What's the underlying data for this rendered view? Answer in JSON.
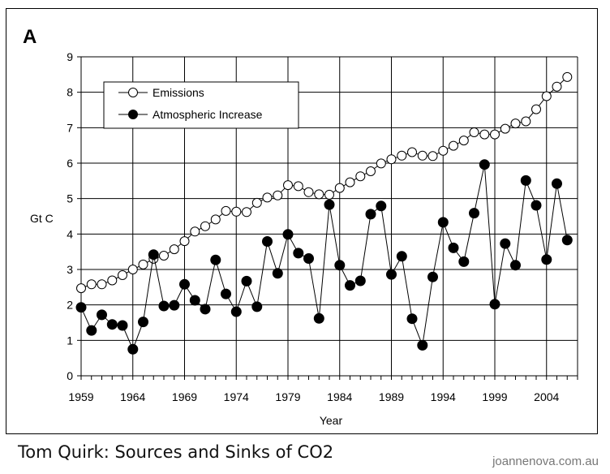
{
  "chart_data": {
    "type": "line",
    "panel_label": "A",
    "xlabel": "Year",
    "ylabel": "Gt C",
    "xlim": [
      1959,
      2007
    ],
    "ylim": [
      0,
      9
    ],
    "yticks": [
      0,
      1,
      2,
      3,
      4,
      5,
      6,
      7,
      8,
      9
    ],
    "xticks": [
      1959,
      1964,
      1969,
      1974,
      1979,
      1984,
      1989,
      1994,
      1999,
      2004
    ],
    "legend_position": "top-left",
    "grid": true,
    "x": [
      1959,
      1960,
      1961,
      1962,
      1963,
      1964,
      1965,
      1966,
      1967,
      1968,
      1969,
      1970,
      1971,
      1972,
      1973,
      1974,
      1975,
      1976,
      1977,
      1978,
      1979,
      1980,
      1981,
      1982,
      1983,
      1984,
      1985,
      1986,
      1987,
      1988,
      1989,
      1990,
      1991,
      1992,
      1993,
      1994,
      1995,
      1996,
      1997,
      1998,
      1999,
      2000,
      2001,
      2002,
      2003,
      2004,
      2005,
      2006
    ],
    "series": [
      {
        "name": "Emissions",
        "marker": "open-circle",
        "values": [
          2.47,
          2.58,
          2.58,
          2.69,
          2.84,
          3.0,
          3.14,
          3.3,
          3.39,
          3.57,
          3.8,
          4.07,
          4.22,
          4.41,
          4.65,
          4.63,
          4.62,
          4.88,
          5.03,
          5.09,
          5.38,
          5.35,
          5.18,
          5.12,
          5.11,
          5.3,
          5.46,
          5.63,
          5.77,
          5.99,
          6.11,
          6.21,
          6.31,
          6.21,
          6.2,
          6.35,
          6.49,
          6.64,
          6.87,
          6.81,
          6.81,
          6.97,
          7.12,
          7.18,
          7.52,
          7.89,
          8.16,
          8.43
        ]
      },
      {
        "name": "Atmospheric Increase",
        "marker": "filled-circle",
        "values": [
          1.93,
          1.28,
          1.72,
          1.45,
          1.42,
          0.75,
          1.52,
          3.42,
          1.97,
          1.99,
          2.58,
          2.13,
          1.88,
          3.27,
          2.31,
          1.81,
          2.67,
          1.95,
          3.79,
          2.89,
          3.99,
          3.46,
          3.31,
          1.62,
          4.83,
          3.12,
          2.55,
          2.68,
          4.56,
          4.79,
          2.86,
          3.37,
          1.61,
          0.86,
          2.79,
          4.33,
          3.61,
          3.22,
          4.59,
          5.96,
          2.02,
          3.73,
          3.12,
          5.51,
          4.81,
          3.28,
          5.42,
          3.83
        ]
      }
    ]
  },
  "caption": "Tom Quirk: Sources and Sinks of CO2",
  "watermark": "joannenova.com.au"
}
